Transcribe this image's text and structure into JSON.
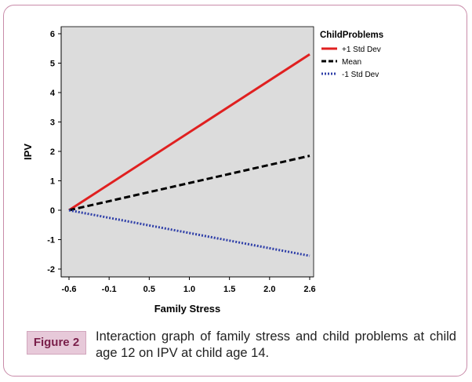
{
  "figure": {
    "label": "Figure 2",
    "caption": "Interaction graph of family stress and child problems at child age 12 on IPV at child age 14."
  },
  "chart_data": {
    "type": "line",
    "xlabel": "Family Stress",
    "ylabel": "IPV",
    "x_ticks": [
      -0.6,
      -0.1,
      0.5,
      1.0,
      1.5,
      2.0,
      2.6
    ],
    "x_tick_labels": [
      "-0.6",
      "-0.1",
      "0.5",
      "1.0",
      "1.5",
      "2.0",
      "2.6"
    ],
    "y_ticks": [
      -2,
      -1,
      0,
      1,
      2,
      3,
      4,
      5,
      6
    ],
    "y_tick_labels": [
      "-2",
      "-1",
      "0",
      "1",
      "2",
      "3",
      "4",
      "5",
      "6"
    ],
    "xlim": [
      -0.6,
      2.6
    ],
    "ylim": [
      -2.2,
      6.3
    ],
    "legend_title": "ChildProblems",
    "legend_position": "right",
    "plot_background": "#dcdcdc",
    "series": [
      {
        "name": "+1 Std Dev",
        "color": "#e02020",
        "dash": "solid",
        "x": [
          -0.6,
          2.6
        ],
        "y": [
          0,
          5.3
        ]
      },
      {
        "name": "Mean",
        "color": "#000000",
        "dash": "dashed",
        "x": [
          -0.6,
          2.6
        ],
        "y": [
          0,
          1.85
        ]
      },
      {
        "name": "-1 Std Dev",
        "color": "#2f3fa8",
        "dash": "dotted",
        "x": [
          -0.6,
          2.6
        ],
        "y": [
          0,
          -1.55
        ]
      }
    ]
  }
}
